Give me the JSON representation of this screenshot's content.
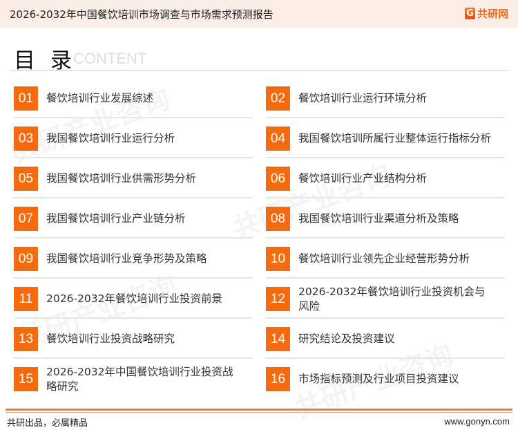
{
  "header": {
    "title": "2026-2032年中国餐饮培训市场调查与市场需求预测报告",
    "logo_text": "共研网",
    "logo_mark": "G"
  },
  "section": {
    "title": "目 录",
    "subtitle": "CONTENT"
  },
  "items": [
    {
      "num": "01",
      "label": "餐饮培训行业发展综述"
    },
    {
      "num": "02",
      "label": "餐饮培训行业运行环境分析"
    },
    {
      "num": "03",
      "label": "我国餐饮培训行业运行分析"
    },
    {
      "num": "04",
      "label": "我国餐饮培训所属行业整体运行指标分析"
    },
    {
      "num": "05",
      "label": "我国餐饮培训行业供需形势分析"
    },
    {
      "num": "06",
      "label": "餐饮培训行业产业结构分析"
    },
    {
      "num": "07",
      "label": "我国餐饮培训行业产业链分析"
    },
    {
      "num": "08",
      "label": "我国餐饮培训行业渠道分析及策略"
    },
    {
      "num": "09",
      "label": "我国餐饮培训行业竞争形势及策略"
    },
    {
      "num": "10",
      "label": "餐饮培训行业领先企业经营形势分析"
    },
    {
      "num": "11",
      "label": "2026-2032年餐饮培训行业投资前景"
    },
    {
      "num": "12",
      "label": "2026-2032年餐饮培训行业投资机会与风险"
    },
    {
      "num": "13",
      "label": "餐饮培训行业投资战略研究"
    },
    {
      "num": "14",
      "label": "研究结论及投资建议"
    },
    {
      "num": "15",
      "label": "2026-2032年中国餐饮培训行业投资战略研究"
    },
    {
      "num": "16",
      "label": "市场指标预测及行业项目投资建议"
    }
  ],
  "footer": {
    "slogan": "共研出品，必属精品",
    "url": "www.gonyn.com"
  },
  "colors": {
    "accent": "#f36a0f",
    "header_bg": "#fbeee7",
    "footer_line": "#d88540"
  }
}
